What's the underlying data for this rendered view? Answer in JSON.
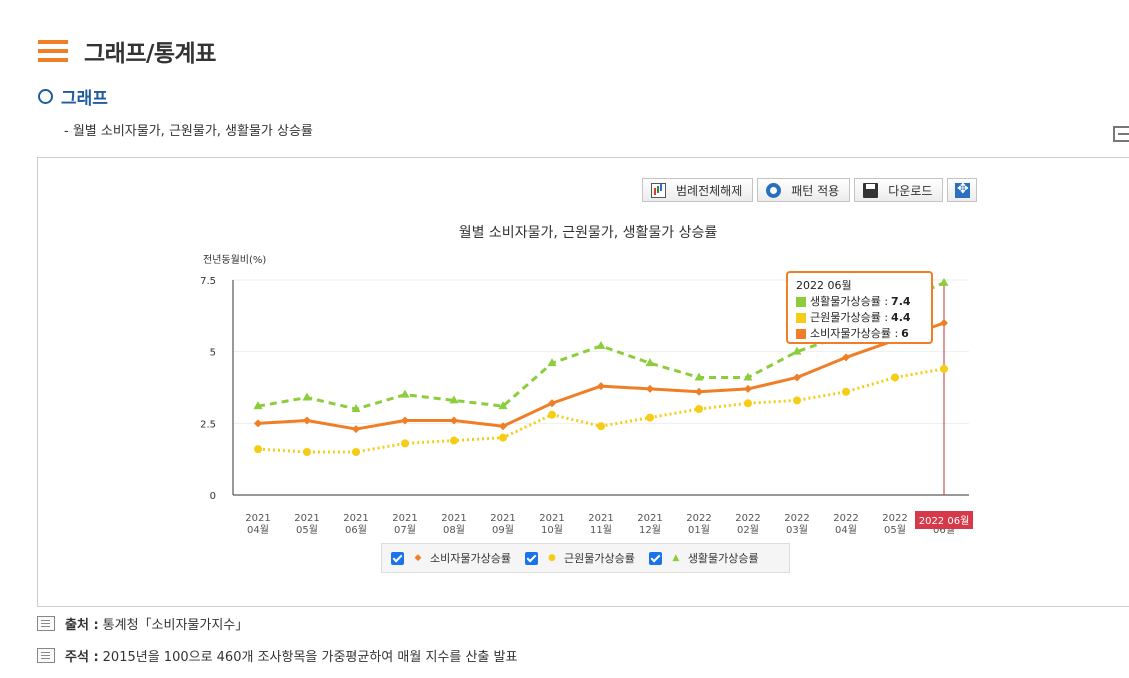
{
  "header": {
    "title": "그래프/통계표"
  },
  "section": {
    "title": "그래프"
  },
  "subtitle": "- 월별 소비자물가, 근원물가, 생활물가 상승률",
  "toolbar": {
    "legend_toggle_label": "범례전체해제",
    "pattern_label": "패턴 적용",
    "download_label": "다운로드"
  },
  "chart_data": {
    "type": "line",
    "title": "월별 소비자물가, 근원물가, 생활물가 상승률",
    "ylabel": "전년동월비(%)",
    "xlabel": "",
    "ylim": [
      0,
      7.5
    ],
    "yticks": [
      "0",
      "2.5",
      "5",
      "7.5"
    ],
    "grid": true,
    "categories": [
      [
        "2021",
        "04월"
      ],
      [
        "2021",
        "05월"
      ],
      [
        "2021",
        "06월"
      ],
      [
        "2021",
        "07월"
      ],
      [
        "2021",
        "08월"
      ],
      [
        "2021",
        "09월"
      ],
      [
        "2021",
        "10월"
      ],
      [
        "2021",
        "11월"
      ],
      [
        "2021",
        "12월"
      ],
      [
        "2022",
        "01월"
      ],
      [
        "2022",
        "02월"
      ],
      [
        "2022",
        "03월"
      ],
      [
        "2022",
        "04월"
      ],
      [
        "2022",
        "05월"
      ],
      [
        "2022",
        "06월"
      ]
    ],
    "series": [
      {
        "name": "소비자물가상승률",
        "color": "#f07e26",
        "style": "solid",
        "marker": "diamond",
        "values": [
          2.5,
          2.6,
          2.3,
          2.6,
          2.6,
          2.4,
          3.2,
          3.8,
          3.7,
          3.6,
          3.7,
          4.1,
          4.8,
          5.4,
          6.0
        ]
      },
      {
        "name": "근원물가상승률",
        "color": "#f5cd16",
        "style": "dotted",
        "marker": "circle",
        "values": [
          1.6,
          1.5,
          1.5,
          1.8,
          1.9,
          2.0,
          2.8,
          2.4,
          2.7,
          3.0,
          3.2,
          3.3,
          3.6,
          4.1,
          4.4
        ]
      },
      {
        "name": "생활물가상승률",
        "color": "#8ccd3c",
        "style": "dashed",
        "marker": "triangle",
        "values": [
          3.1,
          3.4,
          3.0,
          3.5,
          3.3,
          3.1,
          4.6,
          5.2,
          4.6,
          4.1,
          4.1,
          5.0,
          5.6,
          6.7,
          7.4
        ]
      }
    ],
    "highlight_index": 14,
    "highlight_label": "2022 06월",
    "tooltip": {
      "title": "2022 06월",
      "rows": [
        {
          "name": "생활물가상승률",
          "value": "7.4",
          "color": "#8ccd3c"
        },
        {
          "name": "근원물가상승률",
          "value": "4.4",
          "color": "#f5cd16"
        },
        {
          "name": "소비자물가상승률",
          "value": "6",
          "color": "#f07e26"
        }
      ]
    },
    "legend": [
      {
        "name": "소비자물가상승률",
        "marker": "◆",
        "color": "#f07e26"
      },
      {
        "name": "근원물가상승률",
        "marker": "●",
        "color": "#f5cd16"
      },
      {
        "name": "생활물가상승률",
        "marker": "▲",
        "color": "#8ccd3c"
      }
    ]
  },
  "footnotes": {
    "source_label": "출처 :",
    "source_text": "통계청「소비자물가지수」",
    "note_label": "주석 :",
    "note_text": "2015년을 100으로 460개 조사항목을 가중평균하여 매월 지수를 산출 발표"
  }
}
